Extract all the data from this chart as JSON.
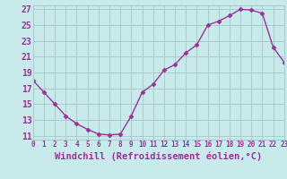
{
  "x": [
    0,
    1,
    2,
    3,
    4,
    5,
    6,
    7,
    8,
    9,
    10,
    11,
    12,
    13,
    14,
    15,
    16,
    17,
    18,
    19,
    20,
    21,
    22,
    23
  ],
  "y": [
    18.0,
    16.5,
    15.0,
    13.5,
    12.5,
    11.8,
    11.2,
    11.1,
    11.2,
    13.5,
    16.5,
    17.5,
    19.3,
    20.0,
    21.5,
    22.5,
    25.0,
    25.5,
    26.2,
    27.0,
    26.9,
    26.5,
    22.2,
    20.3
  ],
  "xlim": [
    0,
    23
  ],
  "ylim": [
    10.5,
    27.5
  ],
  "yticks": [
    11,
    13,
    15,
    17,
    19,
    21,
    23,
    25,
    27
  ],
  "xtick_labels": [
    "0",
    "1",
    "2",
    "3",
    "4",
    "5",
    "6",
    "7",
    "8",
    "9",
    "10",
    "11",
    "12",
    "13",
    "14",
    "15",
    "16",
    "17",
    "18",
    "19",
    "20",
    "21",
    "22",
    "23"
  ],
  "xlabel": "Windchill (Refroidissement éolien,°C)",
  "line_color": "#993399",
  "marker": "D",
  "marker_size": 2.5,
  "bg_color": "#c8eaea",
  "grid_color": "#aacece",
  "tick_color": "#993399",
  "label_color": "#993399",
  "xlabel_fontsize": 7.5,
  "ytick_fontsize": 7,
  "xtick_fontsize": 5.5,
  "linewidth": 1.0
}
